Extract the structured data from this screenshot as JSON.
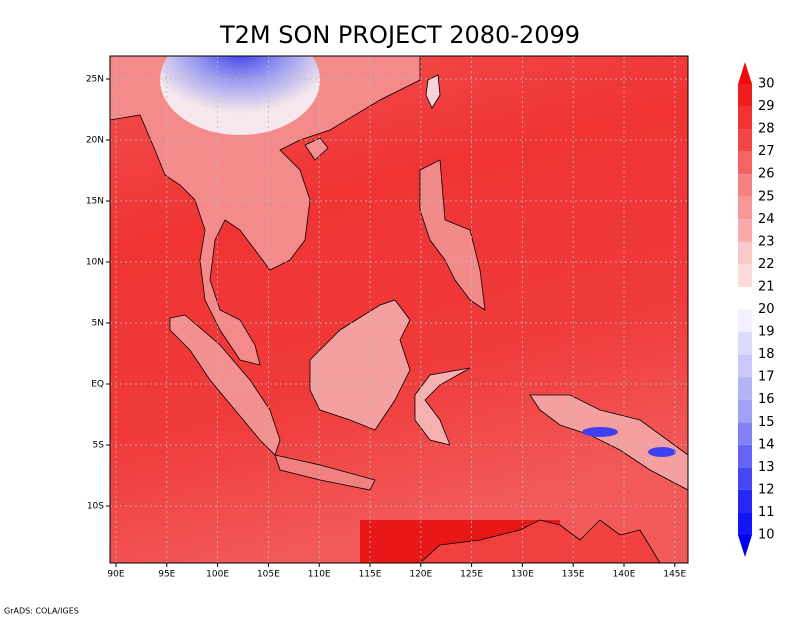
{
  "title": "T2M SON PROJECT 2080-2099",
  "map": {
    "xticks": [
      "90E",
      "95E",
      "100E",
      "105E",
      "110E",
      "115E",
      "120E",
      "125E",
      "130E",
      "135E",
      "140E",
      "145E"
    ],
    "yticks": [
      "25N",
      "20N",
      "15N",
      "10N",
      "5N",
      "EQ",
      "5S",
      "10S"
    ]
  },
  "colorbar": {
    "levels": [
      10,
      11,
      12,
      13,
      14,
      15,
      16,
      17,
      18,
      19,
      20,
      21,
      22,
      23,
      24,
      25,
      26,
      27,
      28,
      29,
      30
    ],
    "colors": [
      "#0000f0",
      "#1414f5",
      "#2828f5",
      "#4646f5",
      "#6464f5",
      "#8282f5",
      "#a0a0f5",
      "#b4b4f5",
      "#c8c8fa",
      "#dcdcfa",
      "#f0f0ff",
      "#ffffff",
      "#fadcdc",
      "#fac8c8",
      "#faaaaa",
      "#fa9696",
      "#f58282",
      "#f56464",
      "#f04646",
      "#f03232",
      "#f01e1e",
      "#f00a0a"
    ]
  },
  "footer": "GrADS: COLA/IGES"
}
